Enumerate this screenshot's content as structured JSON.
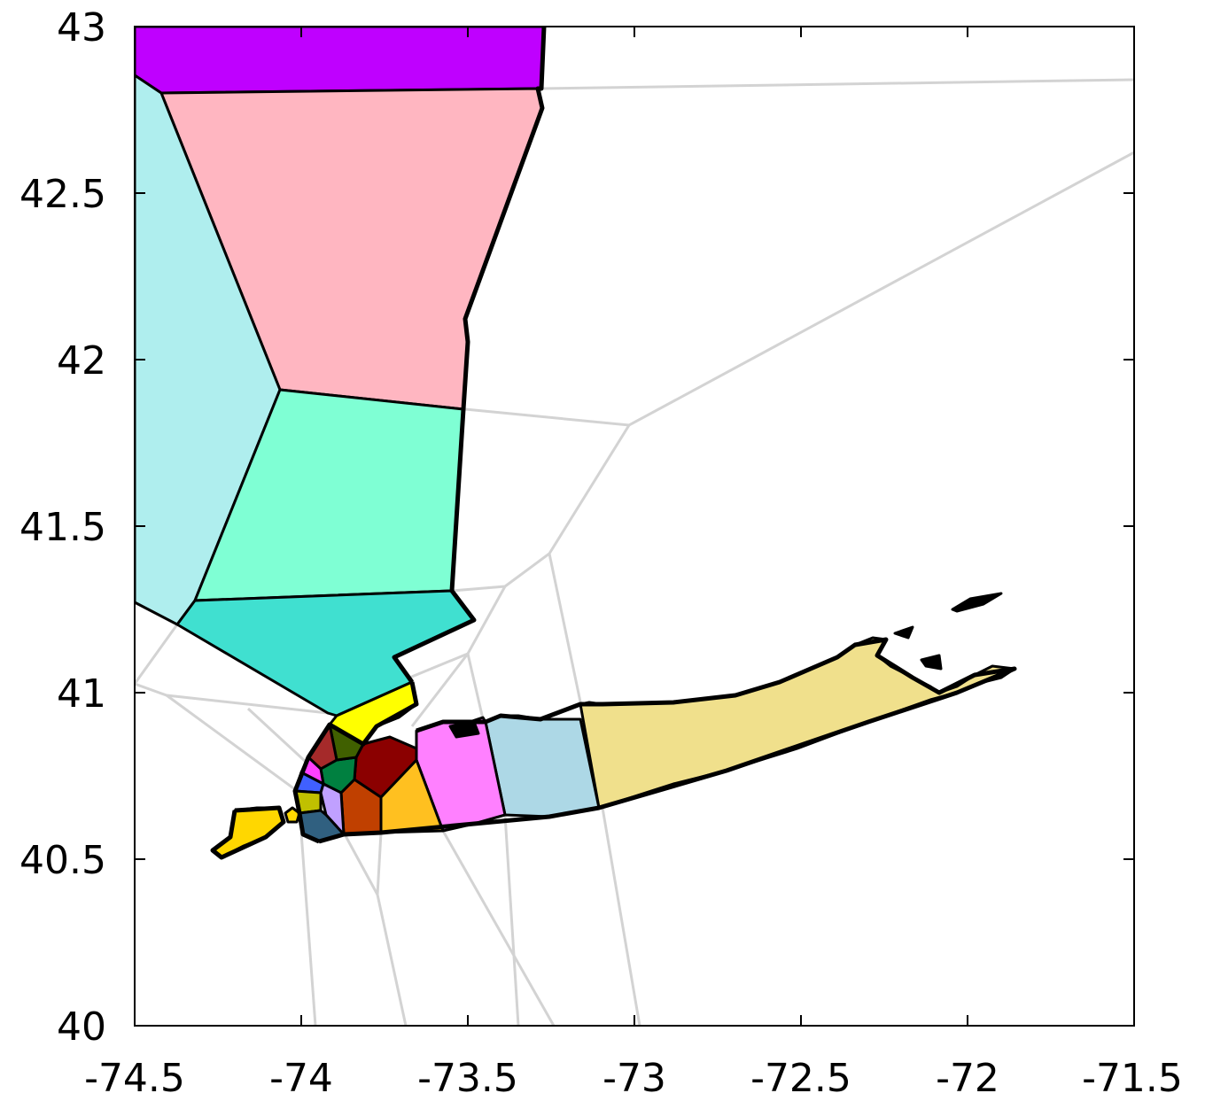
{
  "chart_data": {
    "type": "map",
    "title": "",
    "xlabel": "",
    "ylabel": "",
    "xlim": [
      -74.5,
      -71.5
    ],
    "ylim": [
      40,
      43
    ],
    "x_ticks": [
      "-74.5",
      "-74",
      "-73.5",
      "-73",
      "-72.5",
      "-72",
      "-71.5"
    ],
    "y_ticks": [
      "43",
      "42.5",
      "42",
      "41.5",
      "41",
      "40.5",
      "40"
    ],
    "grid": false,
    "regions": [
      {
        "id": "top-purple",
        "color": "#bf00ff"
      },
      {
        "id": "pink",
        "color": "#ffb6c1"
      },
      {
        "id": "pale-turquoise",
        "color": "#afeeee"
      },
      {
        "id": "aquamarine",
        "color": "#7fffd4"
      },
      {
        "id": "turquoise",
        "color": "#40e0d0"
      },
      {
        "id": "yellow",
        "color": "#ffff00"
      },
      {
        "id": "long-island-east",
        "color": "#f0e08c"
      },
      {
        "id": "long-island-lightblue",
        "color": "#add8e6"
      },
      {
        "id": "long-island-magenta",
        "color": "#ff80ff"
      },
      {
        "id": "orange",
        "color": "#ffc020"
      },
      {
        "id": "dark-orange",
        "color": "#c04000"
      },
      {
        "id": "dark-red",
        "color": "#8b0000"
      },
      {
        "id": "green",
        "color": "#008040"
      },
      {
        "id": "olive",
        "color": "#406000"
      },
      {
        "id": "brown",
        "color": "#a52a2a"
      },
      {
        "id": "pink-small",
        "color": "#ff40ff"
      },
      {
        "id": "blue-small",
        "color": "#4060ff"
      },
      {
        "id": "lavender",
        "color": "#c0a0ff"
      },
      {
        "id": "olive-yellow",
        "color": "#c0c000"
      },
      {
        "id": "steel",
        "color": "#306080"
      },
      {
        "id": "staten-gold",
        "color": "#ffd700"
      }
    ],
    "edge_color": "#d3d3d3"
  }
}
